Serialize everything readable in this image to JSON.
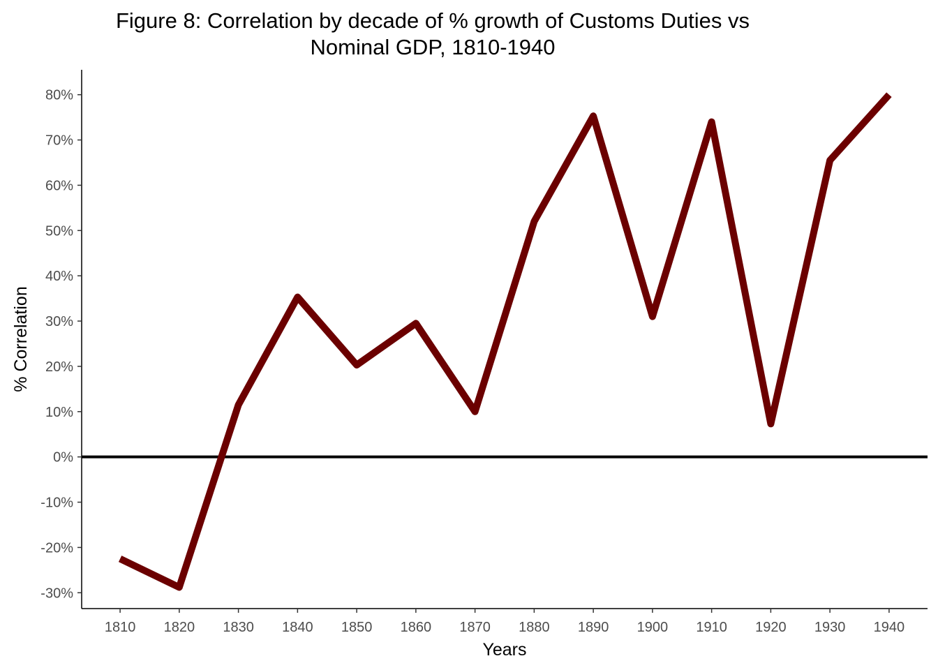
{
  "chart_data": {
    "type": "line",
    "title_lines": [
      "Figure 8: Correlation by decade of % growth of Customs Duties vs",
      "Nominal GDP, 1810-1940"
    ],
    "xlabel": "Years",
    "ylabel": "% Correlation",
    "x": [
      1810,
      1820,
      1830,
      1840,
      1850,
      1860,
      1870,
      1880,
      1890,
      1900,
      1910,
      1920,
      1930,
      1940
    ],
    "x_tick_labels": [
      "1810",
      "1820",
      "1830",
      "1840",
      "1850",
      "1860",
      "1870",
      "1880",
      "1890",
      "1900",
      "1910",
      "1920",
      "1930",
      "1940"
    ],
    "series": [
      {
        "name": "Correlation",
        "values": [
          -22.5,
          -28.8,
          11.5,
          35.3,
          20.3,
          29.5,
          10.0,
          52.0,
          75.3,
          31.0,
          74.0,
          7.3,
          65.5,
          80.0
        ]
      }
    ],
    "y_ticks": [
      80,
      70,
      60,
      50,
      40,
      30,
      20,
      10,
      0,
      -10,
      -20,
      -30
    ],
    "y_tick_labels": [
      "80%",
      "70%",
      "60%",
      "50%",
      "40%",
      "30%",
      "20%",
      "10%",
      "0%",
      "-10%",
      "-20%",
      "-30%"
    ],
    "xlim": [
      1803.5,
      1946.5
    ],
    "ylim": [
      -33.5,
      85.5
    ],
    "reference_line_y": 0,
    "grid": false,
    "line_color": "#6b0000",
    "reference_line_color": "#000000"
  }
}
